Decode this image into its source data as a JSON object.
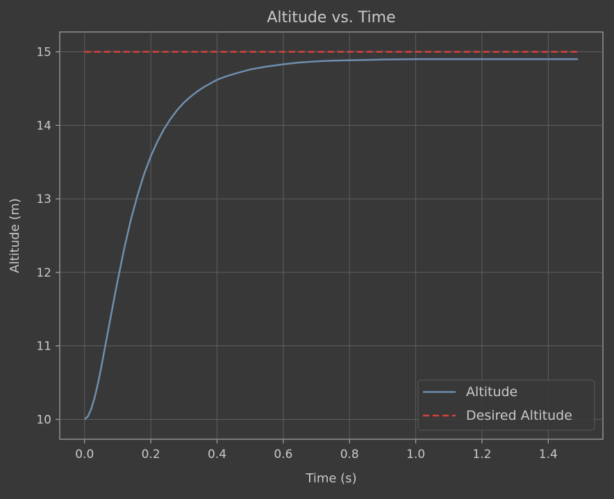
{
  "chart_data": {
    "type": "line",
    "title": "Altitude vs. Time",
    "xlabel": "Time (s)",
    "ylabel": "Altitude (m)",
    "xlim": [
      -0.075,
      1.565
    ],
    "ylim": [
      9.73,
      15.27
    ],
    "x_ticks": [
      0.0,
      0.2,
      0.4,
      0.6,
      0.8,
      1.0,
      1.2,
      1.4
    ],
    "x_tick_labels": [
      "0.0",
      "0.2",
      "0.4",
      "0.6",
      "0.8",
      "1.0",
      "1.2",
      "1.4"
    ],
    "y_ticks": [
      10,
      11,
      12,
      13,
      14,
      15
    ],
    "y_tick_labels": [
      "10",
      "11",
      "12",
      "13",
      "14",
      "15"
    ],
    "grid": true,
    "legend_position": "lower-right",
    "series": [
      {
        "name": "Altitude",
        "style": "solid",
        "color": "#6f8fae",
        "x": [
          0.0,
          0.01,
          0.02,
          0.03,
          0.04,
          0.05,
          0.06,
          0.07,
          0.08,
          0.09,
          0.1,
          0.12,
          0.14,
          0.16,
          0.18,
          0.2,
          0.22,
          0.24,
          0.26,
          0.28,
          0.3,
          0.32,
          0.34,
          0.36,
          0.38,
          0.4,
          0.43,
          0.46,
          0.5,
          0.55,
          0.6,
          0.65,
          0.7,
          0.75,
          0.8,
          0.85,
          0.9,
          1.0,
          1.1,
          1.2,
          1.3,
          1.4,
          1.49
        ],
        "y": [
          10.0,
          10.04,
          10.14,
          10.29,
          10.48,
          10.7,
          10.94,
          11.18,
          11.42,
          11.66,
          11.89,
          12.33,
          12.72,
          13.05,
          13.34,
          13.58,
          13.78,
          13.95,
          14.09,
          14.21,
          14.31,
          14.39,
          14.46,
          14.52,
          14.57,
          14.62,
          14.67,
          14.71,
          14.76,
          14.8,
          14.83,
          14.855,
          14.87,
          14.88,
          14.885,
          14.89,
          14.895,
          14.9,
          14.9,
          14.9,
          14.9,
          14.9,
          14.9
        ]
      },
      {
        "name": "Desired Altitude",
        "style": "dashed",
        "color": "#d9413a",
        "x": [
          0.0,
          1.49
        ],
        "y": [
          15.0,
          15.0
        ]
      }
    ]
  }
}
